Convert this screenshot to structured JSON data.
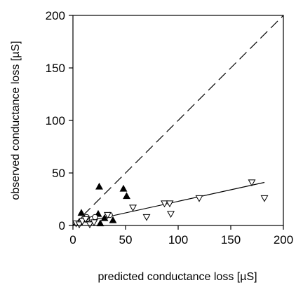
{
  "chart_data": {
    "type": "scatter",
    "xlabel": "predicted conductance loss [µS]",
    "ylabel": "observed conductance loss [µS]",
    "xlim": [
      0,
      200
    ],
    "ylim": [
      0,
      200
    ],
    "x_ticks": [
      0,
      50,
      100,
      150,
      200
    ],
    "y_ticks": [
      0,
      50,
      100,
      150,
      200
    ],
    "grid": false,
    "legend": "none",
    "reference_line": {
      "style": "dashed",
      "x": [
        0,
        200
      ],
      "y": [
        0,
        200
      ]
    },
    "fit_line": {
      "style": "solid",
      "x": [
        0,
        182
      ],
      "y": [
        1,
        41
      ]
    },
    "series": [
      {
        "marker": "filled-triangle-up",
        "color": "#000000",
        "points": [
          {
            "x": 8,
            "y": 12
          },
          {
            "x": 25,
            "y": 37
          },
          {
            "x": 24,
            "y": 11
          },
          {
            "x": 26,
            "y": 2
          },
          {
            "x": 30,
            "y": 7
          },
          {
            "x": 38,
            "y": 5
          },
          {
            "x": 48,
            "y": 35
          },
          {
            "x": 51,
            "y": 28
          }
        ]
      },
      {
        "marker": "open-circle",
        "color": "#000000",
        "points": [
          {
            "x": 7,
            "y": 3
          },
          {
            "x": 10,
            "y": 6
          },
          {
            "x": 13,
            "y": 8
          },
          {
            "x": 18,
            "y": 6
          },
          {
            "x": 21,
            "y": 8
          },
          {
            "x": 35,
            "y": 10
          }
        ]
      },
      {
        "marker": "open-triangle-down",
        "color": "#000000",
        "points": [
          {
            "x": 3,
            "y": 2
          },
          {
            "x": 6,
            "y": 1
          },
          {
            "x": 9,
            "y": 4
          },
          {
            "x": 12,
            "y": 6
          },
          {
            "x": 16,
            "y": 1
          },
          {
            "x": 20,
            "y": 3
          },
          {
            "x": 33,
            "y": 10
          },
          {
            "x": 57,
            "y": 17
          },
          {
            "x": 70,
            "y": 8
          },
          {
            "x": 87,
            "y": 21
          },
          {
            "x": 92,
            "y": 21
          },
          {
            "x": 93,
            "y": 11
          },
          {
            "x": 120,
            "y": 26
          },
          {
            "x": 170,
            "y": 41
          },
          {
            "x": 182,
            "y": 26
          }
        ]
      }
    ]
  }
}
